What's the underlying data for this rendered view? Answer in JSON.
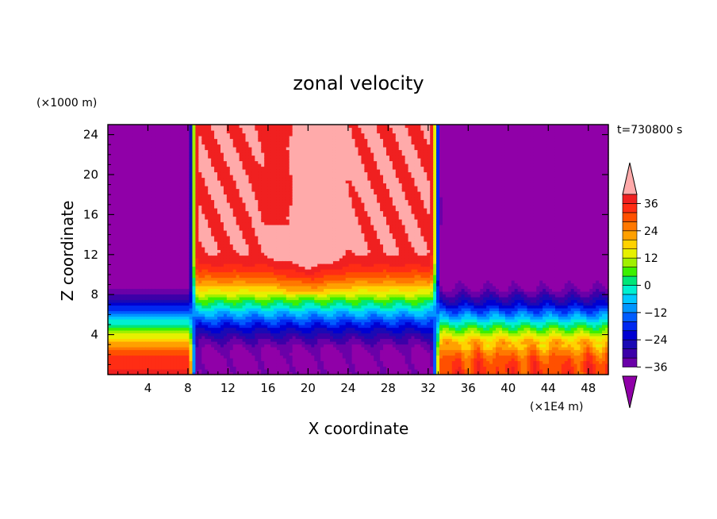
{
  "chart_data": {
    "type": "heatmap",
    "title": "zonal velocity",
    "xlabel": "X coordinate",
    "ylabel": "Z coordinate",
    "x_unit": "(×1E4 m)",
    "y_unit": "(×1000 m)",
    "time_label": "t=730800 s",
    "xlim": [
      0,
      50
    ],
    "ylim": [
      0,
      25
    ],
    "x_ticks": [
      4,
      8,
      12,
      16,
      20,
      24,
      28,
      32,
      36,
      40,
      44,
      48
    ],
    "y_ticks": [
      4,
      8,
      12,
      16,
      20,
      24
    ],
    "x_tick_labels": [
      "4",
      "8",
      "12",
      "16",
      "20",
      "24",
      "28",
      "32",
      "36",
      "40",
      "44",
      "48"
    ],
    "y_tick_labels": [
      "4",
      "8",
      "12",
      "16",
      "20",
      "24"
    ],
    "colorbar": {
      "levels": [
        -40,
        -36,
        -32,
        -28,
        -24,
        -20,
        -16,
        -12,
        -8,
        -4,
        0,
        4,
        8,
        12,
        16,
        20,
        24,
        28,
        32,
        36,
        40
      ],
      "colors": [
        "#9000a8",
        "#6a00a8",
        "#3c00a8",
        "#1a0ab4",
        "#0000d2",
        "#0028f0",
        "#005cff",
        "#0096ff",
        "#00c8ff",
        "#00f0d0",
        "#00e678",
        "#3cf000",
        "#a0f000",
        "#e6f000",
        "#ffd200",
        "#ffa000",
        "#ff7800",
        "#ff5000",
        "#ff2d14",
        "#f02020",
        "#ffaaaa"
      ],
      "tick_values": [
        36,
        24,
        12,
        0,
        -12,
        -24,
        -36
      ],
      "tick_labels": [
        "36",
        "24",
        "12",
        "0",
        "−12",
        "−24",
        "−36"
      ],
      "extend": "both"
    },
    "regions": [
      {
        "x_range": [
          0,
          8
        ],
        "description": "westerly near surface, easterly aloft",
        "surface_value": 36,
        "top_value": -40
      },
      {
        "x_range": [
          8.5,
          32
        ],
        "description": "easterly near surface, strong westerly aloft",
        "surface_value": -38,
        "top_value": 42
      },
      {
        "x_range": [
          33,
          50
        ],
        "description": "westerly near surface, easterly aloft",
        "surface_value": 34,
        "top_value": -38
      }
    ]
  }
}
